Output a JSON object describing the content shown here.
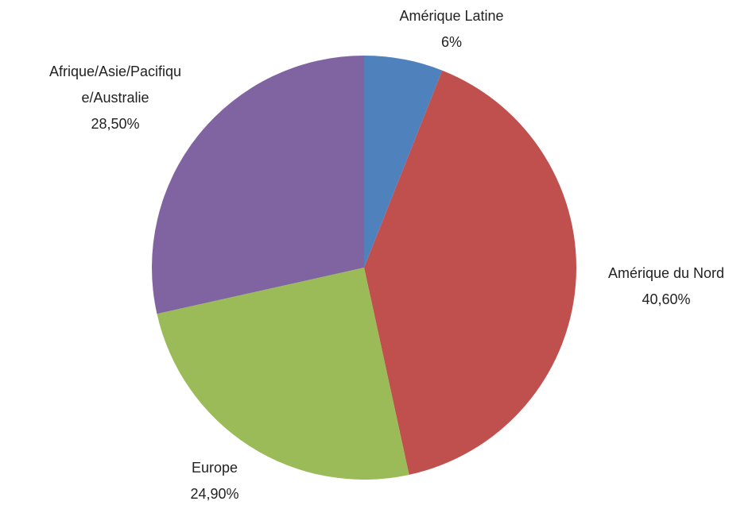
{
  "chart_data": {
    "type": "pie",
    "categories": [
      "Amérique Latine",
      "Amérique du Nord",
      "Europe",
      "Afrique/Asie/Pacifique/Australie"
    ],
    "values": [
      6,
      40.6,
      24.9,
      28.5
    ],
    "value_labels": [
      "6%",
      "40,60%",
      "24,90%",
      "28,50%"
    ],
    "colors": [
      "#4f81bd",
      "#c0504d",
      "#9bbb59",
      "#8064a2"
    ]
  }
}
